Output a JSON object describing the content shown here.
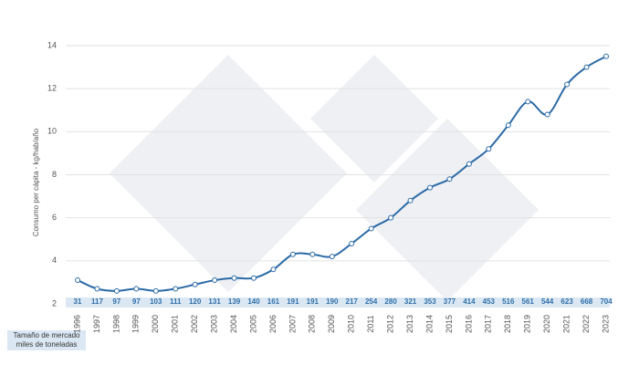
{
  "chart_data": {
    "type": "line",
    "y_label": "Consumo per cápita - kg/hab/año",
    "categories": [
      "1996",
      "1997",
      "1998",
      "1999",
      "2000",
      "2001",
      "2002",
      "2003",
      "2004",
      "2005",
      "2006",
      "2007",
      "2008",
      "2009",
      "2010",
      "2011",
      "2012",
      "2013",
      "2014",
      "2015",
      "2016",
      "2017",
      "2018",
      "2019",
      "2020",
      "2021",
      "2022",
      "2023"
    ],
    "series": [
      {
        "color": "#2b6aa6",
        "values": [
          3.1,
          2.7,
          2.6,
          2.7,
          2.6,
          2.7,
          2.9,
          3.1,
          3.2,
          3.2,
          3.6,
          4.3,
          4.3,
          4.2,
          4.8,
          5.5,
          6.0,
          6.8,
          7.4,
          7.8,
          8.5,
          9.2,
          10.3,
          11.4,
          10.8,
          12.2,
          13.0,
          13.5
        ]
      }
    ],
    "market_size": {
      "label": [
        "Tamaño de mercado",
        "miles de toneladas"
      ],
      "values": [
        31,
        117,
        97,
        97,
        103,
        111,
        120,
        131,
        139,
        140,
        161,
        191,
        191,
        190,
        217,
        254,
        280,
        321,
        353,
        377,
        414,
        453,
        516,
        561,
        544,
        623,
        668,
        704
      ]
    },
    "ylim": [
      2,
      14
    ],
    "yticks": [
      2,
      4,
      6,
      8,
      10,
      12,
      14
    ],
    "grid": true
  }
}
